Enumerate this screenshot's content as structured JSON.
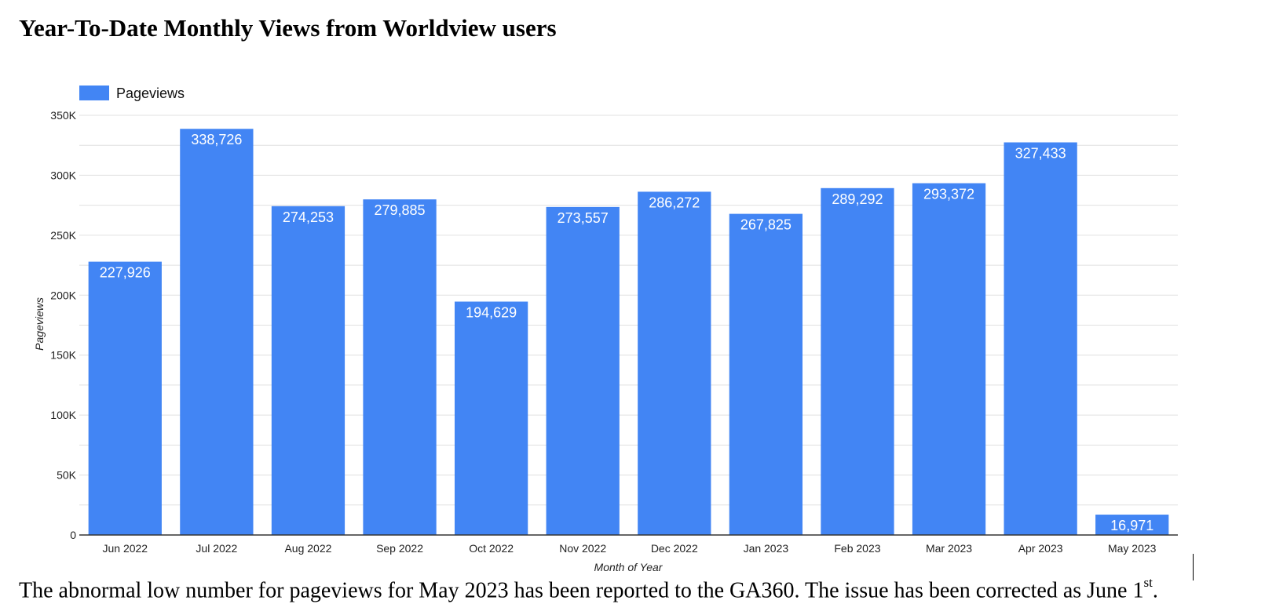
{
  "page": {
    "title": "Year-To-Date Monthly Views from Worldview users",
    "note_text": "The abnormal low number for pageviews for May 2023 has been reported to the GA360. The issue has been corrected as June 1",
    "note_sup": "st",
    "note_end": "."
  },
  "colors": {
    "bar": "#4285f4",
    "grid": "#e0e0e0",
    "axis": "#333333"
  },
  "chart_data": {
    "type": "bar",
    "title": "",
    "xlabel": "Month of Year",
    "ylabel": "Pageviews",
    "legend": "top-left",
    "grid": true,
    "ylim": [
      0,
      350000
    ],
    "yticks": [
      0,
      50000,
      100000,
      150000,
      200000,
      250000,
      300000,
      350000
    ],
    "ytick_labels": [
      "0",
      "50K",
      "100K",
      "150K",
      "200K",
      "250K",
      "300K",
      "350K"
    ],
    "categories": [
      "Jun 2022",
      "Jul 2022",
      "Aug 2022",
      "Sep 2022",
      "Oct 2022",
      "Nov 2022",
      "Dec 2022",
      "Jan 2023",
      "Feb 2023",
      "Mar 2023",
      "Apr 2023",
      "May 2023"
    ],
    "series": [
      {
        "name": "Pageviews",
        "values": [
          227926,
          338726,
          274253,
          279885,
          194629,
          273557,
          286272,
          267825,
          289292,
          293372,
          327433,
          16971
        ],
        "labels": [
          "227,926",
          "338,726",
          "274,253",
          "279,885",
          "194,629",
          "273,557",
          "286,272",
          "267,825",
          "289,292",
          "293,372",
          "327,433",
          "16,971"
        ]
      }
    ]
  }
}
